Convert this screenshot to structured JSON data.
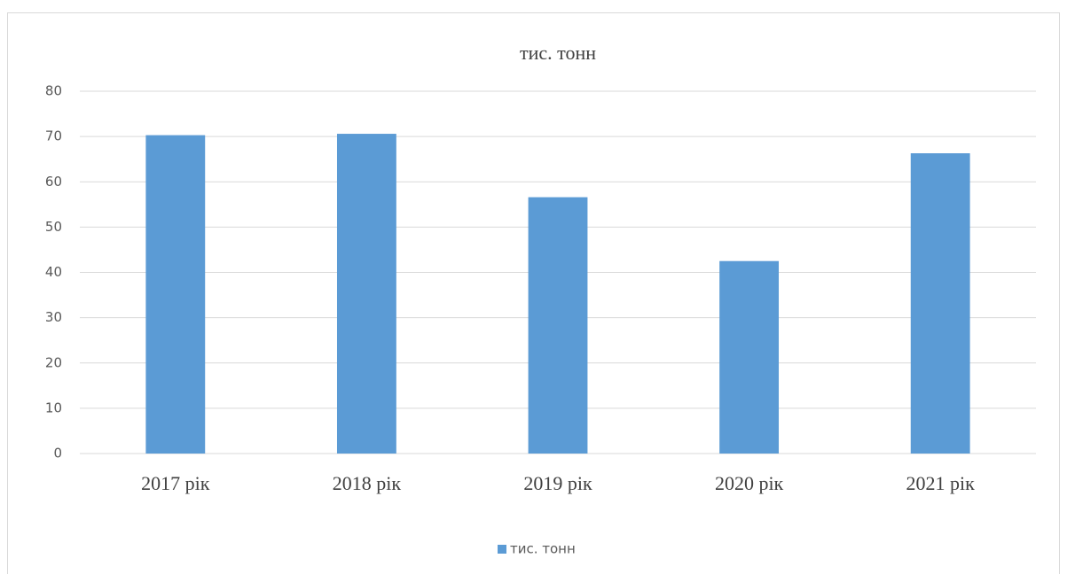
{
  "chart_data": {
    "type": "bar",
    "title": "тис. тонн",
    "categories": [
      "2017 рік",
      "2018 рік",
      "2019 рік",
      "2020 рік",
      "2021 рік"
    ],
    "series": [
      {
        "name": "тис. тонн",
        "color": "#5b9bd5",
        "values": [
          70.3,
          70.6,
          56.6,
          42.5,
          66.3
        ]
      }
    ],
    "ylim": [
      0,
      80
    ],
    "yticks": [
      0,
      10,
      20,
      30,
      40,
      50,
      60,
      70,
      80
    ],
    "grid": true,
    "legend": "bottom"
  }
}
